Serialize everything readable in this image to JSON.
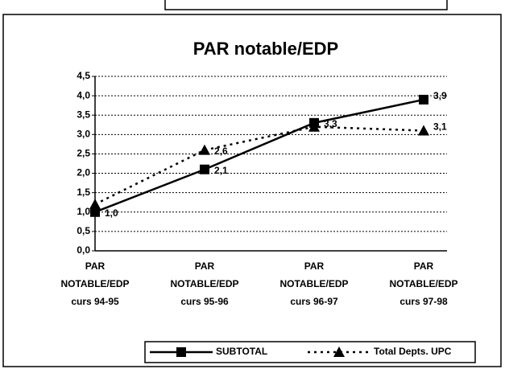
{
  "chart_data": {
    "type": "line",
    "title": "PAR notable/EDP",
    "categories": [
      "PAR\nNOTABLE/EDP\ncurs 94-95",
      "PAR\nNOTABLE/EDP\ncurs 95-96",
      "PAR\nNOTABLE/EDP\ncurs 96-97",
      "PAR\nNOTABLE/EDP\ncurs 97-98"
    ],
    "series": [
      {
        "name": "SUBTOTAL",
        "color": "#000000",
        "marker": "square",
        "dash": false,
        "values": [
          1.0,
          2.1,
          3.3,
          3.9
        ],
        "value_labels": [
          "1,0",
          "2,1",
          "3,3",
          "3,9"
        ]
      },
      {
        "name": "Total Depts. UPC",
        "color": "#000000",
        "marker": "triangle",
        "dash": true,
        "values": [
          1.2,
          2.6,
          3.2,
          3.1
        ],
        "value_labels": [
          null,
          "2,6",
          null,
          "3,1"
        ]
      }
    ],
    "ylim": [
      0,
      4.5
    ],
    "yticks": [
      {
        "value": 0,
        "label": "0,0"
      },
      {
        "value": 0.5,
        "label": "0,5"
      },
      {
        "value": 1,
        "label": "1,0"
      },
      {
        "value": 1.5,
        "label": "1,5"
      },
      {
        "value": 2,
        "label": "2,0"
      },
      {
        "value": 2.5,
        "label": "2,5"
      },
      {
        "value": 3,
        "label": "3,0"
      },
      {
        "value": 3.5,
        "label": "3,5"
      },
      {
        "value": 4,
        "label": "4,0"
      },
      {
        "value": 4.5,
        "label": "4,5"
      }
    ],
    "grid": true,
    "legend": "bottom"
  }
}
